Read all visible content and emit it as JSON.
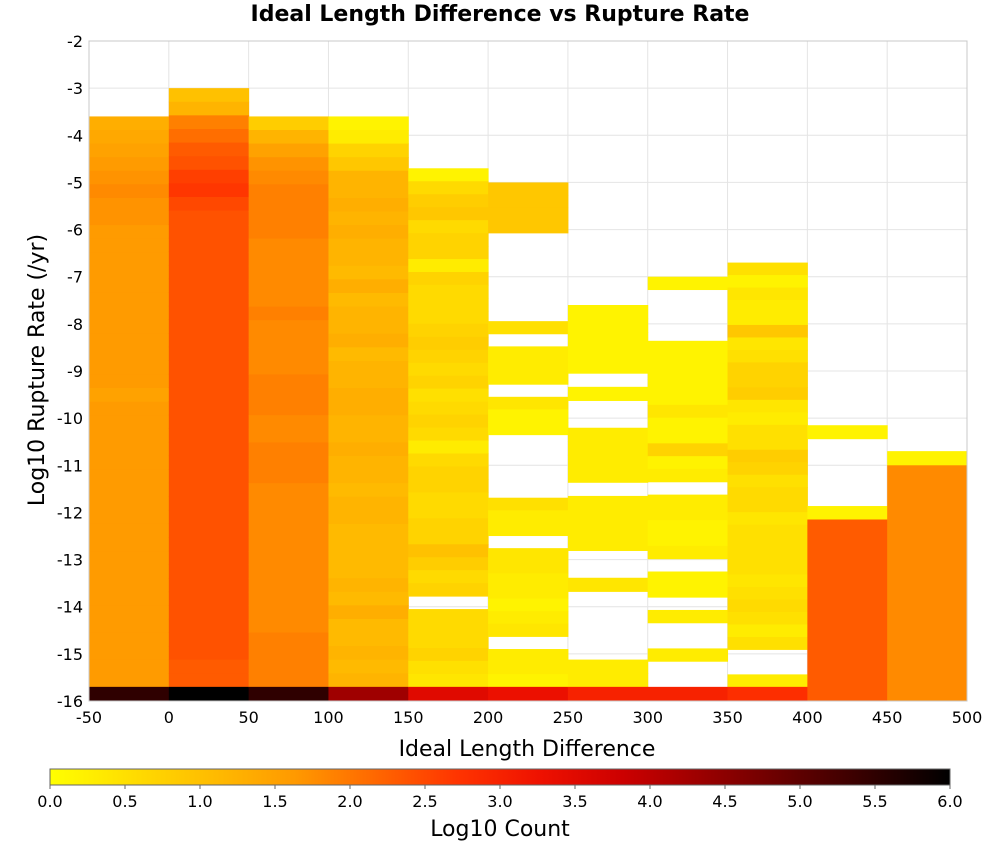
{
  "chart_data": {
    "type": "heatmap",
    "title": "Ideal Length Difference vs Rupture Rate",
    "xlabel": "Ideal Length Difference",
    "ylabel": "Log10 Rupture Rate (/yr)",
    "xlim": [
      -50,
      500
    ],
    "ylim": [
      -16,
      -2
    ],
    "x_ticks": [
      -50,
      0,
      50,
      100,
      150,
      200,
      250,
      300,
      350,
      400,
      450,
      500
    ],
    "y_ticks": [
      -2,
      -3,
      -4,
      -5,
      -6,
      -7,
      -8,
      -9,
      -10,
      -11,
      -12,
      -13,
      -14,
      -15,
      -16
    ],
    "x_bin_width": 50,
    "y_bin_width": 0.29,
    "grid": true,
    "colorbar": {
      "label": "Log10 Count",
      "range": [
        0.0,
        6.0
      ],
      "ticks": [
        "0.0",
        "0.5",
        "1.0",
        "1.5",
        "2.0",
        "2.5",
        "3.0",
        "3.5",
        "4.0",
        "4.5",
        "5.0",
        "5.5",
        "6.0"
      ],
      "colormap": [
        "#ffff00",
        "#ffdd00",
        "#ffbb00",
        "#ff9900",
        "#ff6600",
        "#ff3300",
        "#ee1100",
        "#cc0000",
        "#990000",
        "#660000",
        "#330000",
        "#000000"
      ]
    },
    "columns": [
      {
        "x_center": -25,
        "y_top": -3.6,
        "y_bottom": -15.7,
        "values": [
          1.3,
          1.4,
          1.5,
          1.6,
          1.7,
          1.8,
          1.7,
          1.7,
          1.6,
          1.6,
          1.6,
          1.6,
          1.6,
          1.6,
          1.6,
          1.6,
          1.6,
          1.6,
          1.6,
          1.6,
          1.5,
          1.6,
          1.6,
          1.6,
          1.6,
          1.6,
          1.6,
          1.6,
          1.6,
          1.6,
          1.6,
          1.6,
          1.6,
          1.6,
          1.6,
          1.6,
          1.6,
          1.6,
          1.6,
          1.6,
          1.6,
          1.6
        ],
        "floor": 5.5
      },
      {
        "x_center": 25,
        "y_top": -3.0,
        "y_bottom": -15.7,
        "values": [
          1.0,
          1.2,
          1.9,
          2.1,
          2.3,
          2.4,
          2.6,
          2.7,
          2.5,
          2.4,
          2.4,
          2.4,
          2.4,
          2.4,
          2.4,
          2.4,
          2.4,
          2.4,
          2.4,
          2.4,
          2.4,
          2.4,
          2.4,
          2.4,
          2.4,
          2.4,
          2.4,
          2.4,
          2.4,
          2.4,
          2.4,
          2.4,
          2.4,
          2.4,
          2.4,
          2.4,
          2.4,
          2.4,
          2.4,
          2.4,
          2.4,
          2.4,
          2.3,
          2.3
        ],
        "floor": 6.0
      },
      {
        "x_center": 75,
        "y_top": -3.6,
        "y_bottom": -15.7,
        "values": [
          0.8,
          1.2,
          1.5,
          1.7,
          1.8,
          1.9,
          1.9,
          1.9,
          1.9,
          1.8,
          1.8,
          1.8,
          1.8,
          1.8,
          1.9,
          1.8,
          1.8,
          1.8,
          1.8,
          1.9,
          1.9,
          1.9,
          1.8,
          1.8,
          1.9,
          1.9,
          1.9,
          1.8,
          1.8,
          1.8,
          1.8,
          1.8,
          1.8,
          1.8,
          1.8,
          1.8,
          1.8,
          1.8,
          1.9,
          1.9,
          1.9,
          1.9
        ],
        "floor": 5.5
      },
      {
        "x_center": 125,
        "y_top": -3.6,
        "y_bottom": -15.7,
        "values": [
          0.2,
          0.3,
          0.7,
          0.9,
          1.2,
          1.2,
          1.3,
          1.2,
          1.3,
          1.2,
          1.2,
          1.1,
          1.3,
          1.1,
          1.2,
          1.2,
          1.3,
          1.1,
          1.2,
          1.2,
          1.3,
          1.3,
          1.2,
          1.2,
          1.3,
          1.2,
          1.2,
          1.1,
          1.2,
          1.2,
          1.1,
          1.1,
          1.1,
          1.1,
          1.2,
          1.1,
          1.3,
          1.1,
          1.1,
          1.2,
          1.1,
          1.2
        ],
        "floor": 4.3
      },
      {
        "x_center": 175,
        "y_top": -4.7,
        "y_bottom": -15.7,
        "values": [
          0.2,
          0.6,
          0.8,
          0.9,
          0.6,
          0.7,
          0.7,
          0.3,
          0.7,
          0.6,
          0.6,
          0.6,
          0.7,
          0.8,
          0.7,
          0.6,
          0.7,
          0.5,
          0.6,
          0.7,
          0.6,
          0.3,
          0.6,
          0.7,
          0.7,
          0.6,
          0.6,
          0.7,
          0.7,
          1.0,
          0.8,
          0.6,
          0.7,
          null,
          0.6,
          0.6,
          0.6,
          0.7,
          0.5,
          0.4
        ],
        "floor": 3.5
      },
      {
        "x_center": 225,
        "y_top": -5.0,
        "y_bottom": -15.7,
        "values": [
          0.9,
          0.9,
          0.9,
          0.9,
          null,
          null,
          null,
          null,
          null,
          null,
          null,
          0.5,
          null,
          0.3,
          0.3,
          0.3,
          null,
          0.4,
          0.2,
          0.2,
          null,
          null,
          null,
          null,
          null,
          0.5,
          0.3,
          0.3,
          null,
          0.4,
          0.4,
          0.3,
          0.3,
          0.2,
          0.3,
          0.4,
          null,
          0.3,
          0.3,
          0.2
        ],
        "floor": 3.3
      },
      {
        "x_center": 275,
        "y_top": -7.6,
        "y_bottom": -15.7,
        "values": [
          0.2,
          0.2,
          0.2,
          0.2,
          0.2,
          null,
          0.2,
          null,
          null,
          0.3,
          0.3,
          0.3,
          0.3,
          null,
          0.3,
          0.3,
          0.3,
          0.3,
          null,
          null,
          0.4,
          null,
          null,
          null,
          null,
          null,
          0.3,
          0.3
        ],
        "floor": 3.0
      },
      {
        "x_center": 325,
        "y_top": -7.0,
        "y_bottom": -15.7,
        "values": [
          0.2,
          null,
          null,
          null,
          null,
          0.2,
          0.2,
          0.2,
          0.2,
          0.2,
          0.4,
          0.2,
          0.2,
          0.7,
          0.2,
          0.3,
          null,
          0.3,
          0.3,
          0.2,
          0.2,
          0.3,
          null,
          0.2,
          0.2,
          null,
          0.3,
          null,
          null,
          0.3,
          null,
          null
        ],
        "floor": 3.0
      },
      {
        "x_center": 375,
        "y_top": -6.7,
        "y_bottom": -15.7,
        "values": [
          0.5,
          0.2,
          0.4,
          0.3,
          0.3,
          0.9,
          0.4,
          0.5,
          0.7,
          0.7,
          0.8,
          0.4,
          0.3,
          0.5,
          0.5,
          0.8,
          0.7,
          0.5,
          0.6,
          0.6,
          0.4,
          0.5,
          0.5,
          0.5,
          0.5,
          0.4,
          0.5,
          0.6,
          0.5,
          0.3,
          0.5,
          null,
          null,
          0.3
        ],
        "floor": 2.8
      },
      {
        "x_center": 425,
        "y_top": -10.15,
        "y_bottom": -12.15,
        "values": [
          0.2,
          null,
          null,
          null,
          null,
          null,
          0.2
        ],
        "floor": 2.3
      },
      {
        "x_center": 475,
        "y_top": -10.7,
        "y_bottom": -11.0,
        "values": [
          0.2
        ],
        "floor": 1.8
      }
    ]
  }
}
